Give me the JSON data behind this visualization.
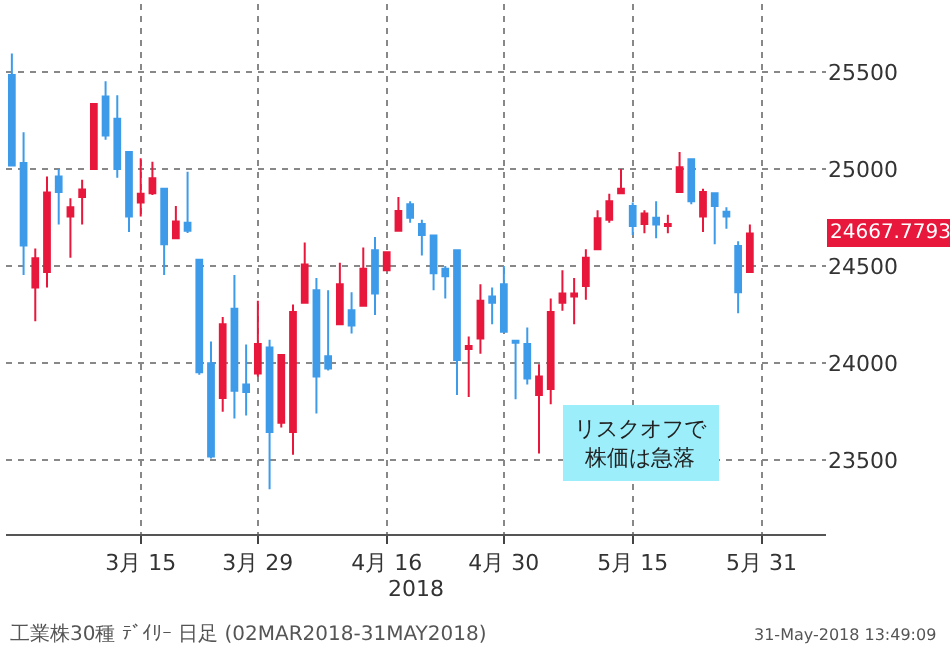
{
  "chart_data": {
    "type": "candlestick",
    "categories": [
      null,
      null,
      null,
      null,
      null,
      null,
      null,
      null,
      null,
      null,
      null,
      "3月 15",
      null,
      null,
      null,
      null,
      null,
      null,
      null,
      null,
      null,
      "3月 29",
      null,
      null,
      null,
      null,
      null,
      null,
      null,
      null,
      null,
      null,
      "4月 16",
      null,
      null,
      null,
      null,
      null,
      null,
      null,
      null,
      null,
      "4月 30",
      null,
      null,
      null,
      null,
      null,
      null,
      null,
      null,
      null,
      null,
      "5月 15",
      null,
      null,
      null,
      null,
      null,
      null,
      null,
      null,
      null,
      null,
      "5月 31"
    ],
    "ohlc": [
      [
        25484,
        25595,
        25018,
        25018
      ],
      [
        25031,
        25189,
        24454,
        24606
      ],
      [
        24390,
        24590,
        24216,
        24540
      ],
      [
        24470,
        24961,
        24390,
        24879
      ],
      [
        24961,
        25000,
        24714,
        24882
      ],
      [
        24755,
        24850,
        24543,
        24803
      ],
      [
        24856,
        24945,
        24714,
        24895
      ],
      [
        25000,
        25335,
        25000,
        25335
      ],
      [
        25373,
        25452,
        25151,
        25173
      ],
      [
        25259,
        25380,
        24955,
        25000
      ],
      [
        25088,
        25088,
        24676,
        24755
      ],
      [
        24828,
        25056,
        24755,
        24872
      ],
      [
        24875,
        25037,
        24866,
        24952
      ],
      [
        24898,
        24898,
        24454,
        24612
      ],
      [
        24644,
        24809,
        24644,
        24730
      ],
      [
        24723,
        24986,
        24670,
        24682
      ],
      [
        24533,
        24533,
        23940,
        23953
      ],
      [
        23999,
        24111,
        23509,
        23519
      ],
      [
        23820,
        24238,
        23750,
        24200
      ],
      [
        24280,
        24454,
        23715,
        23858
      ],
      [
        23890,
        24096,
        23731,
        23852
      ],
      [
        23947,
        24321,
        23931,
        24099
      ],
      [
        24080,
        24121,
        23351,
        23646
      ],
      [
        23693,
        24042,
        23668,
        24042
      ],
      [
        23646,
        24302,
        23528,
        24264
      ],
      [
        24311,
        24622,
        24311,
        24508
      ],
      [
        24375,
        24438,
        23741,
        23931
      ],
      [
        24035,
        24375,
        23962,
        23972
      ],
      [
        24200,
        24517,
        24200,
        24406
      ],
      [
        24273,
        24365,
        24153,
        24194
      ],
      [
        24296,
        24596,
        24296,
        24486
      ],
      [
        24581,
        24650,
        24248,
        24359
      ],
      [
        24479,
        24571,
        24479,
        24571
      ],
      [
        24682,
        24856,
        24682,
        24784
      ],
      [
        24818,
        24834,
        24723,
        24749
      ],
      [
        24717,
        24739,
        24555,
        24660
      ],
      [
        24657,
        24657,
        24375,
        24463
      ],
      [
        24486,
        24501,
        24333,
        24448
      ],
      [
        24581,
        24581,
        23836,
        24016
      ],
      [
        24073,
        24137,
        23826,
        24089
      ],
      [
        24127,
        24406,
        24048,
        24321
      ],
      [
        24343,
        24390,
        24200,
        24311
      ],
      [
        24406,
        24501,
        24162,
        24162
      ],
      [
        24115,
        24115,
        23814,
        24105
      ],
      [
        24099,
        24184,
        23890,
        23921
      ],
      [
        23836,
        23994,
        23535,
        23931
      ],
      [
        23867,
        24333,
        23788,
        24264
      ],
      [
        24311,
        24479,
        24270,
        24359
      ],
      [
        24343,
        24438,
        24200,
        24359
      ],
      [
        24397,
        24587,
        24327,
        24543
      ],
      [
        24587,
        24787,
        24587,
        24746
      ],
      [
        24739,
        24872,
        24723,
        24834
      ],
      [
        24875,
        25000,
        24875,
        24898
      ],
      [
        24809,
        24828,
        24660,
        24707
      ],
      [
        24717,
        24787,
        24669,
        24771
      ],
      [
        24749,
        24834,
        24644,
        24714
      ],
      [
        24707,
        24765,
        24669,
        24717
      ],
      [
        24882,
        25088,
        24882,
        25009
      ],
      [
        25050,
        25050,
        24818,
        24834
      ],
      [
        24755,
        24898,
        24676,
        24882
      ],
      [
        24875,
        24875,
        24612,
        24809
      ],
      [
        24780,
        24803,
        24692,
        24755
      ],
      [
        24603,
        24628,
        24257,
        24365
      ],
      [
        24470,
        24714,
        24470,
        24667.7793
      ],
      null
    ],
    "colors": [
      "#3d9be9",
      "#3d9be9",
      "#e8173c",
      "#e8173c",
      "#3d9be9",
      "#e8173c",
      "#e8173c",
      "#e8173c",
      "#3d9be9",
      "#3d9be9",
      "#3d9be9",
      "#e8173c",
      "#e8173c",
      "#3d9be9",
      "#e8173c",
      "#3d9be9",
      "#3d9be9",
      "#3d9be9",
      "#e8173c",
      "#3d9be9",
      "#3d9be9",
      "#e8173c",
      "#3d9be9",
      "#e8173c",
      "#e8173c",
      "#e8173c",
      "#3d9be9",
      "#3d9be9",
      "#e8173c",
      "#3d9be9",
      "#e8173c",
      "#3d9be9",
      "#e8173c",
      "#e8173c",
      "#3d9be9",
      "#3d9be9",
      "#3d9be9",
      "#3d9be9",
      "#3d9be9",
      "#e8173c",
      "#e8173c",
      "#3d9be9",
      "#3d9be9",
      "#3d9be9",
      "#3d9be9",
      "#e8173c",
      "#e8173c",
      "#e8173c",
      "#e8173c",
      "#e8173c",
      "#e8173c",
      "#e8173c",
      "#e8173c",
      "#3d9be9",
      "#e8173c",
      "#3d9be9",
      "#e8173c",
      "#e8173c",
      "#3d9be9",
      "#e8173c",
      "#3d9be9",
      "#3d9be9",
      "#3d9be9",
      "#e8173c",
      null
    ],
    "xlabel": "2018",
    "ylim": [
      23120,
      25850
    ],
    "yticks": [
      23500,
      24000,
      24500,
      25000,
      25500
    ],
    "grid": true,
    "annotations": [
      "24667.7793",
      "リスクオフで株価は急落",
      "工業株30種 ﾃﾞｲﾘｰ 日足 (02MAR2018-31MAY2018)",
      "31-May-2018 13:49:09"
    ]
  }
}
